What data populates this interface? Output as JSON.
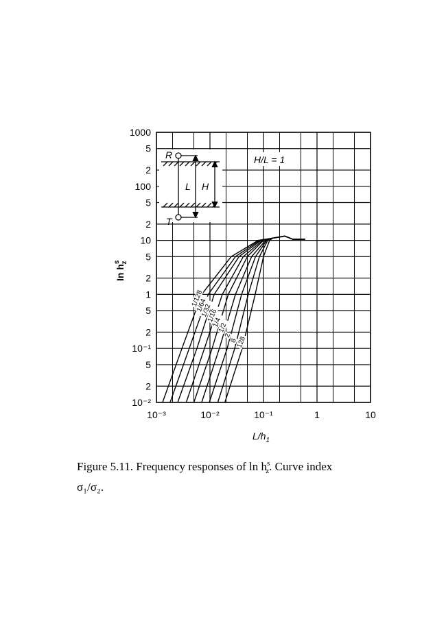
{
  "chart_data": {
    "type": "line",
    "xlabel": "L/h",
    "xlabel_sub": "1",
    "ylabel": "In h",
    "ylabel_sub": "z",
    "ylabel_sup": "s",
    "annotation": "H/L = 1",
    "inset_labels": [
      "R",
      "L",
      "H",
      "T"
    ],
    "log_x": true,
    "log_y": true,
    "grid": true,
    "xlim": [
      0.001,
      10
    ],
    "ylim": [
      0.01,
      1000
    ],
    "xticks": [
      {
        "value": 0.001,
        "label": "10⁻³"
      },
      {
        "value": 0.01,
        "label": "10⁻²"
      },
      {
        "value": 0.1,
        "label": "10⁻¹"
      },
      1,
      10
    ],
    "xminor": [
      0.002,
      0.005,
      0.02,
      0.05,
      0.2,
      0.5,
      2,
      5
    ],
    "yticks": [
      1000,
      {
        "value": 500,
        "label": "5"
      },
      {
        "value": 200,
        "label": "2"
      },
      100,
      {
        "value": 50,
        "label": "5"
      },
      {
        "value": 20,
        "label": "2"
      },
      10,
      5,
      2,
      1,
      {
        "value": 0.5,
        "label": "5"
      },
      {
        "value": 0.2,
        "label": "2"
      },
      {
        "value": 0.1,
        "label": "10⁻¹"
      },
      {
        "value": 0.05,
        "label": "5"
      },
      {
        "value": 0.02,
        "label": "2"
      },
      {
        "value": 0.01,
        "label": "10⁻²"
      }
    ],
    "series": [
      {
        "name": "1/128",
        "color": "#000000",
        "x": [
          0.0013,
          0.003,
          0.007,
          0.025,
          0.08,
          0.15,
          0.25,
          0.35,
          0.6
        ],
        "values": [
          0.01,
          0.1,
          1,
          5,
          10,
          11,
          12,
          10.5,
          10.5
        ]
      },
      {
        "name": "1/64",
        "color": "#000000",
        "x": [
          0.0018,
          0.0041,
          0.0093,
          0.03,
          0.085,
          0.15,
          0.25,
          0.35,
          0.6
        ],
        "values": [
          0.01,
          0.1,
          1,
          5,
          10,
          11,
          12,
          10.5,
          10.5
        ]
      },
      {
        "name": "1/32",
        "color": "#000000",
        "x": [
          0.0025,
          0.0057,
          0.012,
          0.035,
          0.09,
          0.15,
          0.25,
          0.35,
          0.6
        ],
        "values": [
          0.01,
          0.1,
          1,
          5,
          10,
          11,
          12,
          10.5,
          10.5
        ]
      },
      {
        "name": "1/16",
        "color": "#000000",
        "x": [
          0.0036,
          0.0079,
          0.017,
          0.042,
          0.096,
          0.15,
          0.25,
          0.35,
          0.6
        ],
        "values": [
          0.01,
          0.1,
          1,
          5,
          10,
          11,
          12,
          10.5,
          10.5
        ]
      },
      {
        "name": "1/4",
        "color": "#000000",
        "x": [
          0.005,
          0.011,
          0.022,
          0.05,
          0.1,
          0.15,
          0.25,
          0.35,
          0.6
        ],
        "values": [
          0.01,
          0.1,
          1,
          5,
          10,
          11,
          12,
          10.5,
          10.5
        ]
      },
      {
        "name": "1/2",
        "color": "#000000",
        "x": [
          0.007,
          0.015,
          0.03,
          0.06,
          0.11,
          0.15,
          0.25,
          0.35,
          0.6
        ],
        "values": [
          0.01,
          0.1,
          1,
          5,
          10,
          11,
          12,
          10.5,
          10.5
        ]
      },
      {
        "name": "2",
        "color": "#000000",
        "x": [
          0.0097,
          0.021,
          0.039,
          0.071,
          0.115,
          0.15,
          0.25,
          0.35,
          0.6
        ],
        "values": [
          0.01,
          0.1,
          1,
          5,
          10,
          11,
          12,
          10.5,
          10.5
        ]
      },
      {
        "name": "8",
        "color": "#000000",
        "x": [
          0.014,
          0.029,
          0.052,
          0.084,
          0.12,
          0.15,
          0.25,
          0.35,
          0.6
        ],
        "values": [
          0.01,
          0.1,
          1,
          5,
          10,
          11,
          12,
          10.5,
          10.5
        ]
      },
      {
        "name": "128",
        "color": "#000000",
        "x": [
          0.019,
          0.04,
          0.07,
          0.1,
          0.13,
          0.15,
          0.25,
          0.35,
          0.6
        ],
        "values": [
          0.01,
          0.1,
          1,
          5,
          10,
          11,
          12,
          10.5,
          10.5
        ]
      }
    ]
  },
  "caption": {
    "text": "Figure 5.11.   Frequency responses of ln h",
    "sub": "z",
    "sup": "s",
    "after": ".   Curve index",
    "line2": "σ₁/σ₂."
  }
}
